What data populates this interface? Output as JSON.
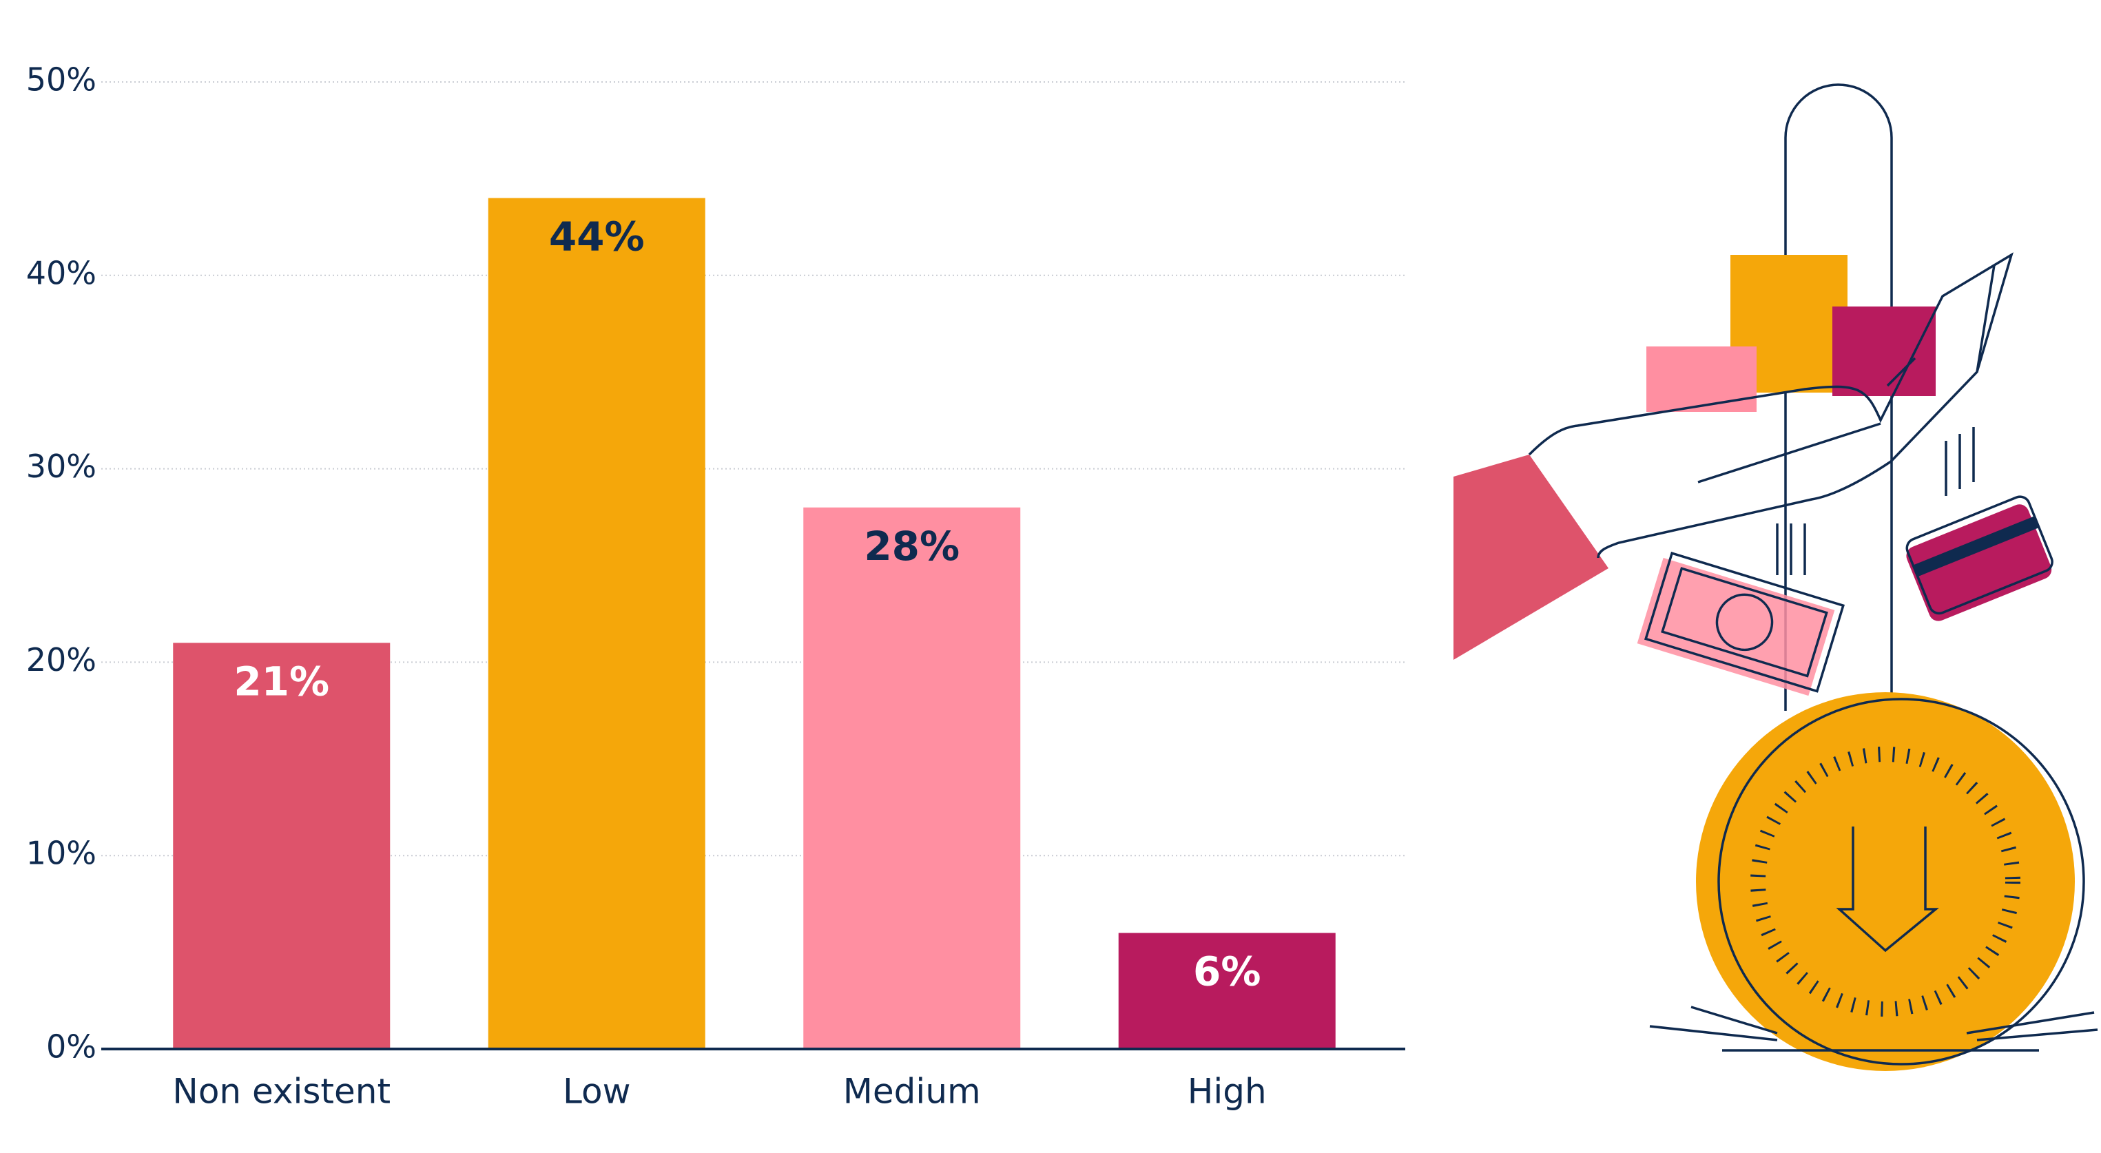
{
  "chart_data": {
    "type": "bar",
    "categories": [
      "Non existent",
      "Low",
      "Medium",
      "High"
    ],
    "values": [
      21,
      44,
      28,
      6
    ],
    "value_labels": [
      "21%",
      "44%",
      "28%",
      "6%"
    ],
    "colors": [
      "#de536b",
      "#f5a70a",
      "#ff8fa1",
      "#b81b5e"
    ],
    "label_colors": [
      "#ffffff",
      "#0f2a4f",
      "#0f2a4f",
      "#ffffff"
    ],
    "ylim": [
      0,
      50
    ],
    "yticks": [
      {
        "value": 0,
        "label": "0%"
      },
      {
        "value": 10,
        "label": "10%"
      },
      {
        "value": 20,
        "label": "20%"
      },
      {
        "value": 30,
        "label": "30%"
      },
      {
        "value": 40,
        "label": "40%"
      },
      {
        "value": 50,
        "label": "50%"
      }
    ],
    "grid": true
  }
}
